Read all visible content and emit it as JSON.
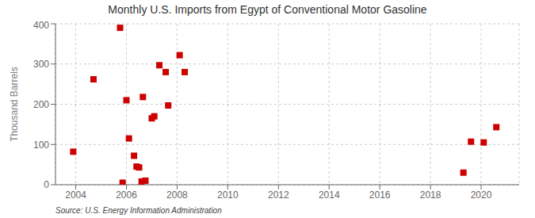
{
  "chart_data": {
    "type": "scatter",
    "title": "Monthly U.S. Imports from Egypt of Conventional Motor Gasoline",
    "ylabel": "Thousand Barrels",
    "annotations": [
      "Source: U.S. Energy Information Administration"
    ],
    "x": [
      2003.9,
      2004.7,
      2005.75,
      2005.85,
      2006.0,
      2006.1,
      2006.3,
      2006.4,
      2006.5,
      2006.6,
      2006.65,
      2006.75,
      2007.0,
      2007.1,
      2007.3,
      2007.55,
      2007.65,
      2008.1,
      2008.3,
      2019.3,
      2019.6,
      2020.1,
      2020.6
    ],
    "values": [
      82,
      262,
      390,
      5,
      210,
      115,
      72,
      45,
      43,
      8,
      218,
      10,
      165,
      170,
      297,
      280,
      197,
      322,
      280,
      30,
      107,
      105,
      143
    ],
    "color": "#cc0000",
    "marker": "square",
    "xlim": [
      2003.2,
      2021.5
    ],
    "ylim": [
      0,
      400
    ],
    "xticks": [
      2004,
      2006,
      2008,
      2010,
      2012,
      2014,
      2016,
      2018,
      2020
    ],
    "yticks": [
      0,
      100,
      200,
      300,
      400
    ],
    "grid": true
  }
}
